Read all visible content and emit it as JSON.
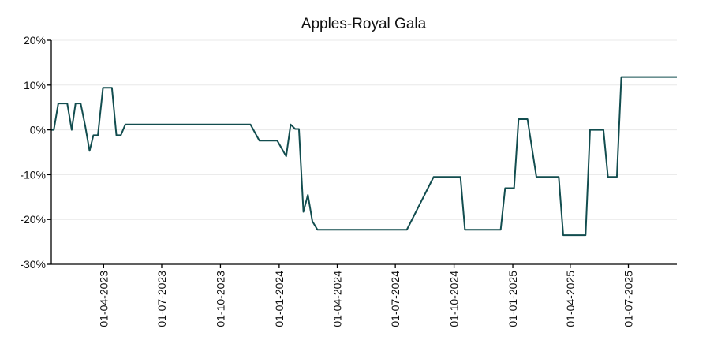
{
  "chart_data": {
    "type": "line",
    "title": "Apples-Royal Gala",
    "xlabel": "",
    "ylabel": "",
    "x_type": "date",
    "xlim": [
      "2023-01-09",
      "2025-09-15"
    ],
    "ylim": [
      -30,
      20
    ],
    "y_unit": "%",
    "y_ticks": [
      20,
      10,
      0,
      -10,
      -20,
      -30
    ],
    "y_tick_labels": [
      "20%",
      "10%",
      "0%",
      "-10%",
      "-20%",
      "-30%"
    ],
    "x_ticks": [
      "2023-04-01",
      "2023-07-01",
      "2023-10-01",
      "2024-01-01",
      "2024-04-01",
      "2024-07-01",
      "2024-10-01",
      "2025-01-01",
      "2025-04-01",
      "2025-07-01"
    ],
    "x_tick_labels": [
      "01-04-2023",
      "01-07-2023",
      "01-10-2023",
      "01-01-2024",
      "01-04-2024",
      "01-07-2024",
      "01-10-2024",
      "01-01-2025",
      "01-04-2025",
      "01-07-2025"
    ],
    "grid": "horizontal",
    "legend": "none",
    "colors": {
      "line": "#124d4f",
      "axis": "#000000",
      "grid": "#e8e8e8"
    },
    "series": [
      {
        "color": "#124d4f",
        "points": [
          [
            "2023-01-09",
            0
          ],
          [
            "2023-01-13",
            0
          ],
          [
            "2023-01-20",
            5.9
          ],
          [
            "2023-02-03",
            5.9
          ],
          [
            "2023-02-10",
            0
          ],
          [
            "2023-02-16",
            5.9
          ],
          [
            "2023-02-24",
            5.9
          ],
          [
            "2023-03-03",
            1.0
          ],
          [
            "2023-03-10",
            -4.7
          ],
          [
            "2023-03-16",
            -1.2
          ],
          [
            "2023-03-23",
            -1.2
          ],
          [
            "2023-03-31",
            9.4
          ],
          [
            "2023-04-14",
            9.4
          ],
          [
            "2023-04-21",
            -1.2
          ],
          [
            "2023-04-28",
            -1.2
          ],
          [
            "2023-05-05",
            1.2
          ],
          [
            "2023-11-17",
            1.2
          ],
          [
            "2023-12-01",
            -2.4
          ],
          [
            "2023-12-29",
            -2.4
          ],
          [
            "2024-01-12",
            -5.9
          ],
          [
            "2024-01-19",
            1.2
          ],
          [
            "2024-01-26",
            0.2
          ],
          [
            "2024-02-01",
            0.2
          ],
          [
            "2024-02-08",
            -18.3
          ],
          [
            "2024-02-15",
            -14.5
          ],
          [
            "2024-02-22",
            -20.4
          ],
          [
            "2024-03-01",
            -22.3
          ],
          [
            "2024-07-19",
            -22.3
          ],
          [
            "2024-08-30",
            -10.5
          ],
          [
            "2024-10-11",
            -10.5
          ],
          [
            "2024-10-18",
            -22.3
          ],
          [
            "2024-12-13",
            -22.3
          ],
          [
            "2024-12-20",
            -13.0
          ],
          [
            "2025-01-03",
            -13.0
          ],
          [
            "2025-01-10",
            2.4
          ],
          [
            "2025-01-24",
            2.4
          ],
          [
            "2025-02-07",
            -10.5
          ],
          [
            "2025-03-14",
            -10.5
          ],
          [
            "2025-03-21",
            -23.5
          ],
          [
            "2025-04-25",
            -23.5
          ],
          [
            "2025-05-02",
            0
          ],
          [
            "2025-05-23",
            0
          ],
          [
            "2025-05-30",
            -10.5
          ],
          [
            "2025-06-13",
            -10.5
          ],
          [
            "2025-06-20",
            11.8
          ],
          [
            "2025-09-15",
            11.8
          ]
        ]
      }
    ]
  }
}
